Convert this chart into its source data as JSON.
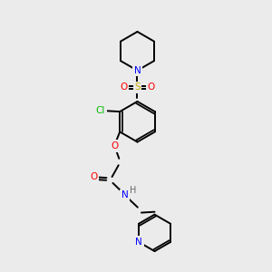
{
  "bg_color": "#ebebeb",
  "bond_color": "#000000",
  "line_width": 1.4,
  "atom_colors": {
    "N": "#0000ff",
    "O": "#ff0000",
    "S": "#ccaa00",
    "Cl": "#00bb00",
    "C": "#000000",
    "H": "#666666"
  }
}
